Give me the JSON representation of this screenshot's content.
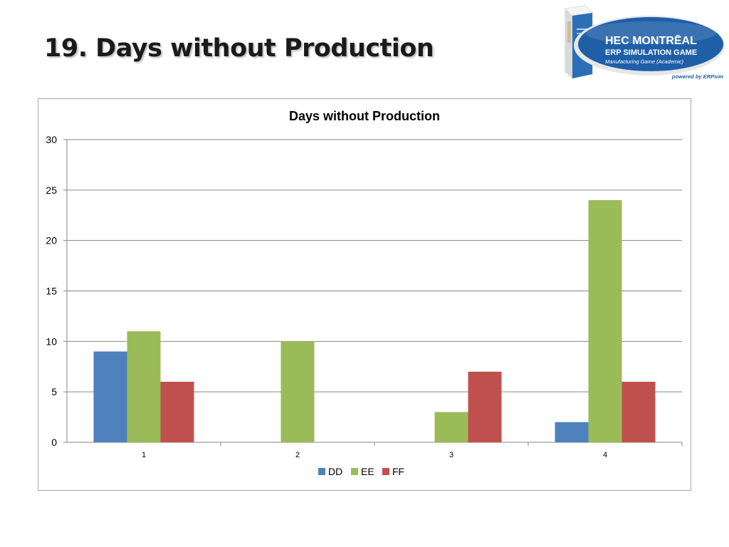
{
  "slide": {
    "title": "19. Days without Production"
  },
  "logo": {
    "brand": "HEC MONTRĒAL",
    "line1": "ERP SIMULATION GAME",
    "line2": "Manufacturing Game (Academic)",
    "powered": "powered by ERPsim"
  },
  "colors": {
    "DD": "#4f81bd",
    "EE": "#9bbb59",
    "FF": "#c0504d",
    "grid": "#868686",
    "logo_blue": "#1f5fa8"
  },
  "chart_data": {
    "type": "bar",
    "title": "Days without Production",
    "xlabel": "",
    "ylabel": "",
    "categories": [
      "1",
      "2",
      "3",
      "4"
    ],
    "series": [
      {
        "name": "DD",
        "values": [
          9,
          0,
          0,
          2
        ]
      },
      {
        "name": "EE",
        "values": [
          11,
          10,
          3,
          24
        ]
      },
      {
        "name": "FF",
        "values": [
          6,
          0,
          7,
          6
        ]
      }
    ],
    "ylim": [
      0,
      30
    ],
    "yticks": [
      "0",
      "5",
      "10",
      "15",
      "20",
      "25",
      "30"
    ],
    "grid": true,
    "legend": "bottom"
  }
}
